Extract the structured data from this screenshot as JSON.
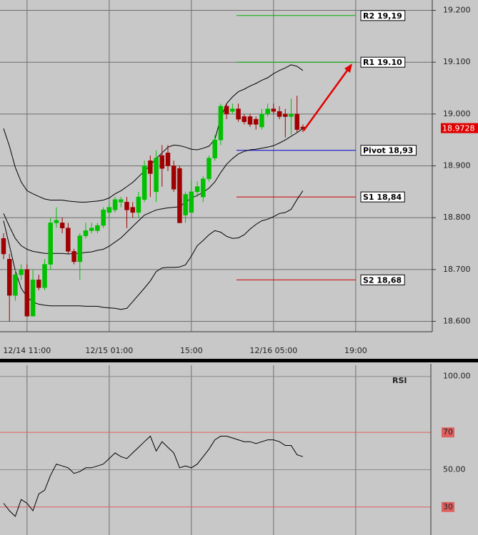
{
  "chart_data": [
    {
      "type": "candlestick",
      "categories": [
        null,
        null,
        null,
        null,
        "12/14 11:00",
        null,
        null,
        null,
        null,
        null,
        null,
        null,
        null,
        null,
        null,
        null,
        null,
        null,
        "12/15 01:00",
        null,
        null,
        null,
        null,
        null,
        null,
        null,
        null,
        null,
        null,
        null,
        null,
        null,
        "15:00",
        null,
        null,
        null,
        null,
        null,
        null,
        null,
        null,
        null,
        null,
        null,
        null,
        null,
        "12/16 05:00",
        null,
        null,
        null,
        null,
        null,
        null,
        null,
        null,
        null,
        null,
        null,
        null,
        null,
        "19:00",
        null,
        null,
        null,
        null,
        null,
        null,
        null,
        null,
        null,
        null,
        null,
        null,
        null
      ],
      "open": [
        18.76,
        18.72,
        18.65,
        18.69,
        18.7,
        18.61,
        18.68,
        18.665,
        18.71,
        18.79,
        18.79,
        18.78,
        18.735,
        18.715,
        18.765,
        18.775,
        18.775,
        18.785,
        18.81,
        18.815,
        18.83,
        18.83,
        18.82,
        18.81,
        18.835,
        18.91,
        18.85,
        18.92,
        18.925,
        18.9,
        18.895,
        18.805,
        18.81,
        18.85,
        18.84,
        18.875,
        18.915,
        18.95,
        19.015,
        19.005,
        19.01,
        18.995,
        18.995,
        18.99,
        18.975,
        19.0,
        19.01,
        19.005,
        19.0,
        18.995,
        19.0,
        18.975,
        null,
        null,
        null,
        null,
        null,
        null,
        null,
        null,
        null,
        null,
        null,
        null,
        null,
        null,
        null,
        null,
        null,
        null,
        null,
        null,
        null,
        null
      ],
      "high": [
        18.77,
        18.73,
        18.7,
        18.71,
        18.71,
        18.7,
        18.69,
        18.72,
        18.8,
        18.82,
        18.8,
        18.79,
        18.74,
        18.77,
        18.79,
        18.79,
        18.79,
        18.82,
        18.83,
        18.84,
        18.84,
        18.84,
        18.83,
        18.85,
        18.91,
        18.92,
        18.93,
        18.94,
        18.94,
        18.91,
        18.9,
        18.85,
        18.87,
        18.87,
        18.88,
        18.92,
        18.96,
        19.02,
        19.02,
        19.02,
        19.02,
        19.0,
        19.0,
        18.995,
        19.01,
        19.02,
        19.02,
        19.015,
        19.01,
        19.03,
        19.035,
        18.98,
        null,
        null,
        null,
        null,
        null,
        null,
        null,
        null,
        null,
        null,
        null,
        null,
        null,
        null,
        null,
        null,
        null,
        null,
        null,
        null,
        null,
        null
      ],
      "low": [
        18.72,
        18.6,
        18.64,
        18.68,
        18.61,
        18.61,
        18.66,
        18.66,
        18.7,
        18.78,
        18.77,
        18.73,
        18.71,
        18.68,
        18.76,
        18.77,
        18.77,
        18.78,
        18.8,
        18.81,
        18.82,
        18.78,
        18.8,
        18.8,
        18.83,
        18.84,
        18.83,
        18.86,
        18.89,
        18.85,
        18.79,
        18.79,
        18.81,
        18.84,
        18.83,
        18.87,
        18.91,
        18.94,
        18.99,
        19.0,
        18.985,
        18.98,
        18.975,
        18.97,
        18.97,
        18.995,
        19.0,
        18.99,
        18.955,
        18.96,
        18.965,
        18.965,
        null,
        null,
        null,
        null,
        null,
        null,
        null,
        null,
        null,
        null,
        null,
        null,
        null,
        null,
        null,
        null,
        null,
        null,
        null,
        null,
        null,
        null
      ],
      "close": [
        18.73,
        18.65,
        18.69,
        18.7,
        18.61,
        18.68,
        18.665,
        18.71,
        18.79,
        18.795,
        18.78,
        18.735,
        18.715,
        18.765,
        18.775,
        18.78,
        18.785,
        18.815,
        18.82,
        18.835,
        18.835,
        18.815,
        18.81,
        18.84,
        18.9,
        18.885,
        18.915,
        18.895,
        18.9,
        18.855,
        18.79,
        18.845,
        18.85,
        18.86,
        18.875,
        18.915,
        18.95,
        19.015,
        19.0,
        19.01,
        18.99,
        18.985,
        18.98,
        18.98,
        19.0,
        19.01,
        19.005,
        18.995,
        18.995,
        19.0,
        18.97,
        18.972,
        null,
        null,
        null,
        null,
        null,
        null,
        null,
        null,
        null,
        null,
        null,
        null,
        null,
        null,
        null,
        null,
        null,
        null,
        null,
        null,
        null,
        null
      ],
      "up_color": "#00c000",
      "down_color": "#a00000",
      "bands": {
        "color": "#000000",
        "upper": [
          18.972,
          18.938,
          18.897,
          18.869,
          18.852,
          18.846,
          18.841,
          18.836,
          18.834,
          18.834,
          18.834,
          18.832,
          18.831,
          18.83,
          18.83,
          18.831,
          18.832,
          18.834,
          18.838,
          18.846,
          18.852,
          18.86,
          18.868,
          18.879,
          18.89,
          18.901,
          18.914,
          18.925,
          18.936,
          18.94,
          18.939,
          18.936,
          18.932,
          18.931,
          18.934,
          18.938,
          18.951,
          18.992,
          19.02,
          19.033,
          19.043,
          19.048,
          19.054,
          19.059,
          19.065,
          19.07,
          19.078,
          19.084,
          19.089,
          19.095,
          19.092,
          19.084,
          null,
          null,
          null,
          null,
          null,
          null,
          null,
          null,
          null,
          null,
          null,
          null,
          null,
          null,
          null,
          null,
          null,
          null,
          null,
          null,
          null,
          null
        ],
        "middle": [
          18.808,
          18.783,
          18.76,
          18.746,
          18.739,
          18.735,
          18.733,
          18.731,
          18.731,
          18.731,
          18.731,
          18.73,
          18.731,
          18.731,
          18.733,
          18.734,
          18.737,
          18.739,
          18.745,
          18.753,
          18.761,
          18.772,
          18.783,
          18.794,
          18.805,
          18.81,
          18.815,
          18.817,
          18.819,
          18.82,
          18.821,
          18.83,
          18.838,
          18.843,
          18.849,
          18.857,
          18.869,
          18.887,
          18.903,
          18.914,
          18.923,
          18.928,
          18.931,
          18.932,
          18.934,
          18.936,
          18.939,
          18.944,
          18.95,
          18.957,
          18.964,
          18.972,
          null,
          null,
          null,
          null,
          null,
          null,
          null,
          null,
          null,
          null,
          null,
          null,
          null,
          null,
          null,
          null,
          null,
          null,
          null,
          null,
          null,
          null
        ],
        "lower": [
          18.794,
          18.746,
          18.698,
          18.664,
          18.647,
          18.637,
          18.633,
          18.631,
          18.63,
          18.63,
          18.63,
          18.63,
          18.63,
          18.63,
          18.629,
          18.629,
          18.629,
          18.627,
          18.626,
          18.625,
          18.623,
          18.625,
          18.638,
          18.651,
          18.664,
          18.678,
          18.696,
          18.703,
          18.704,
          18.704,
          18.705,
          18.709,
          18.726,
          18.746,
          18.756,
          18.767,
          18.775,
          18.772,
          18.764,
          18.76,
          18.761,
          18.767,
          18.778,
          18.787,
          18.794,
          18.797,
          18.802,
          18.808,
          18.81,
          18.816,
          18.835,
          18.852,
          null,
          null,
          null,
          null,
          null,
          null,
          null,
          null,
          null,
          null,
          null,
          null,
          null,
          null,
          null,
          null,
          null,
          null,
          null,
          null,
          null,
          null
        ]
      },
      "levels": [
        {
          "label": "R2 19,19",
          "value": 19.19,
          "color": "#00b000"
        },
        {
          "label": "R1 19.10",
          "value": 19.1,
          "color": "#00b000"
        },
        {
          "label": "Pivot 18,93",
          "value": 18.93,
          "color": "#0000d0"
        },
        {
          "label": "S1 18,84",
          "value": 18.84,
          "color": "#d00000"
        },
        {
          "label": "S2 18,68",
          "value": 18.68,
          "color": "#d00000"
        }
      ],
      "last_price": 18.9728,
      "last_price_color": "#e00000",
      "ylim": [
        18.58,
        19.22
      ],
      "yticks": [
        {
          "value": 18.6,
          "label": "18.600"
        },
        {
          "value": 18.7,
          "label": "18.700"
        },
        {
          "value": 18.8,
          "label": "18.800"
        },
        {
          "value": 18.9,
          "label": "18.900"
        },
        {
          "value": 19.0,
          "label": "19.000"
        },
        {
          "value": 19.1,
          "label": "19.100"
        },
        {
          "value": 19.2,
          "label": "19.200"
        }
      ],
      "grid": true
    },
    {
      "type": "line",
      "title": "RSI",
      "color": "#000000",
      "values": [
        32,
        28,
        25,
        34,
        32,
        28,
        37,
        39,
        47,
        53,
        52,
        51,
        48,
        49,
        51,
        51,
        52,
        53,
        56,
        59,
        57,
        56,
        59,
        62,
        65,
        68,
        60,
        65,
        62,
        59,
        51,
        52,
        51,
        53,
        57,
        61,
        66,
        68,
        68,
        67,
        66,
        65,
        65,
        64,
        65,
        66,
        66,
        65,
        63,
        63,
        58,
        57
      ],
      "ylim": [
        15,
        106
      ],
      "yticks": [
        30,
        {
          "value": 50,
          "label": "50.00"
        },
        70,
        {
          "value": 100,
          "label": "100.00"
        }
      ],
      "levels": [
        {
          "value": 70,
          "color": "#e06060"
        },
        {
          "value": 30,
          "color": "#e06060"
        }
      ],
      "grid": true
    }
  ]
}
